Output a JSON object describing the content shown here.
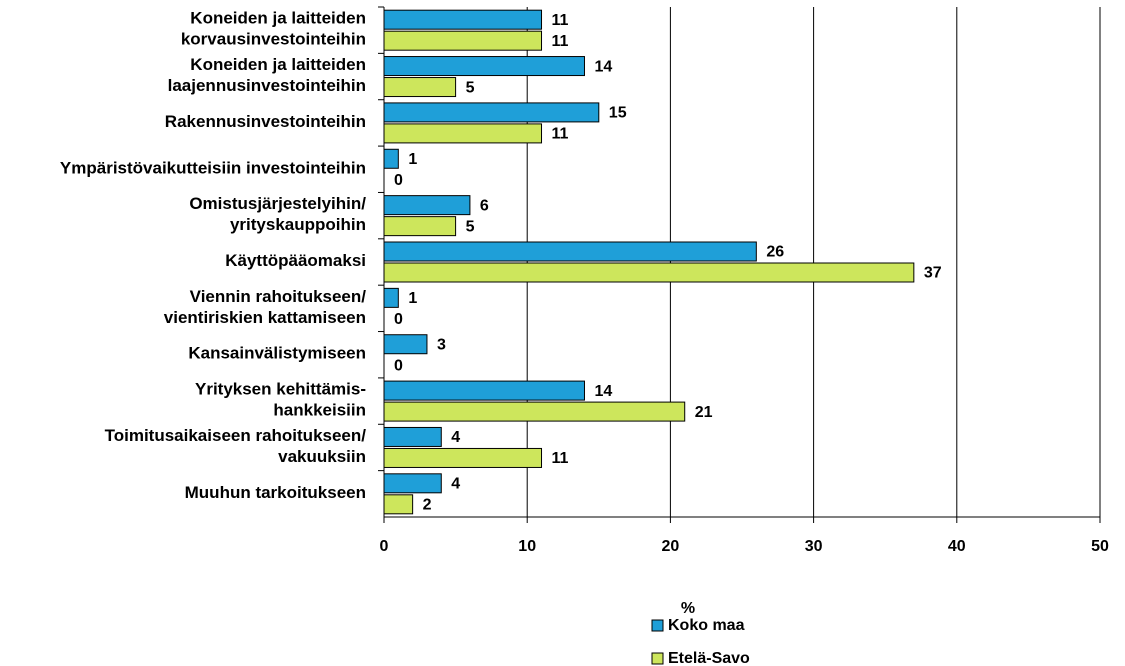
{
  "chart_data": {
    "type": "bar",
    "orientation": "horizontal",
    "categories": [
      "Koneiden ja laitteiden\nkorvausinvestointeihin",
      "Koneiden ja laitteiden\nlaajennusinvestointeihin",
      "Rakennusinvestointeihin",
      "Ympäristövaikutteisiin investointeihin",
      "Omistusjärjestelyihin/\nyrityskauppoihin",
      "Käyttöpääomaksi",
      "Viennin rahoitukseen/\nvientiriskien kattamiseen",
      "Kansainvälistymiseen",
      "Yrityksen kehittämis-\nhankkeisiin",
      "Toimitusaikaiseen rahoitukseen/\nvakuuksiin",
      "Muuhun tarkoitukseen"
    ],
    "series": [
      {
        "name": "Koko maa",
        "color": "#1f9fd8",
        "values": [
          11,
          14,
          15,
          1,
          6,
          26,
          1,
          3,
          14,
          4,
          4
        ]
      },
      {
        "name": "Etelä-Savo",
        "color": "#cde65c",
        "values": [
          11,
          5,
          11,
          0,
          5,
          37,
          0,
          0,
          21,
          11,
          2
        ]
      }
    ],
    "x_label": "%",
    "xlim": [
      0,
      50
    ],
    "xticks": [
      0,
      10,
      20,
      30,
      40,
      50
    ],
    "grid": true,
    "legend": "bottom"
  }
}
